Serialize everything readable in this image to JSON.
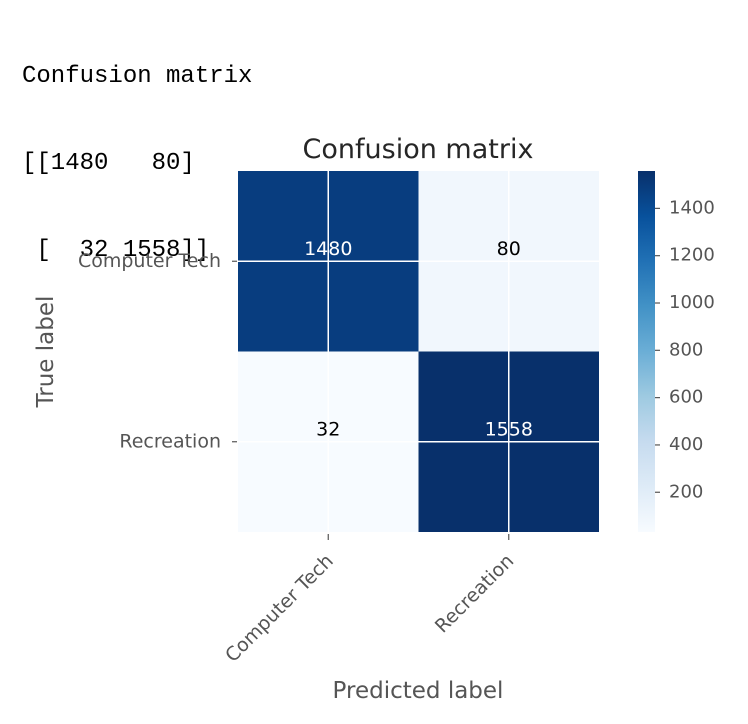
{
  "console": {
    "lines": [
      "Confusion matrix",
      "[[1480   80]",
      " [  32 1558]]"
    ]
  },
  "chart_data": {
    "type": "heatmap",
    "title": "Confusion matrix",
    "xlabel": "Predicted label",
    "ylabel": "True label",
    "x_categories": [
      "Computer Tech",
      "Recreation"
    ],
    "y_categories": [
      "Computer Tech",
      "Recreation"
    ],
    "values": [
      [
        1480,
        80
      ],
      [
        32,
        1558
      ]
    ],
    "colormap": "Blues",
    "colors": {
      "low": "#f7fbff",
      "high": "#08306b"
    },
    "value_range": [
      32,
      1558
    ],
    "colorbar_ticks": [
      200,
      400,
      600,
      800,
      1000,
      1200,
      1400
    ],
    "grid": true
  }
}
